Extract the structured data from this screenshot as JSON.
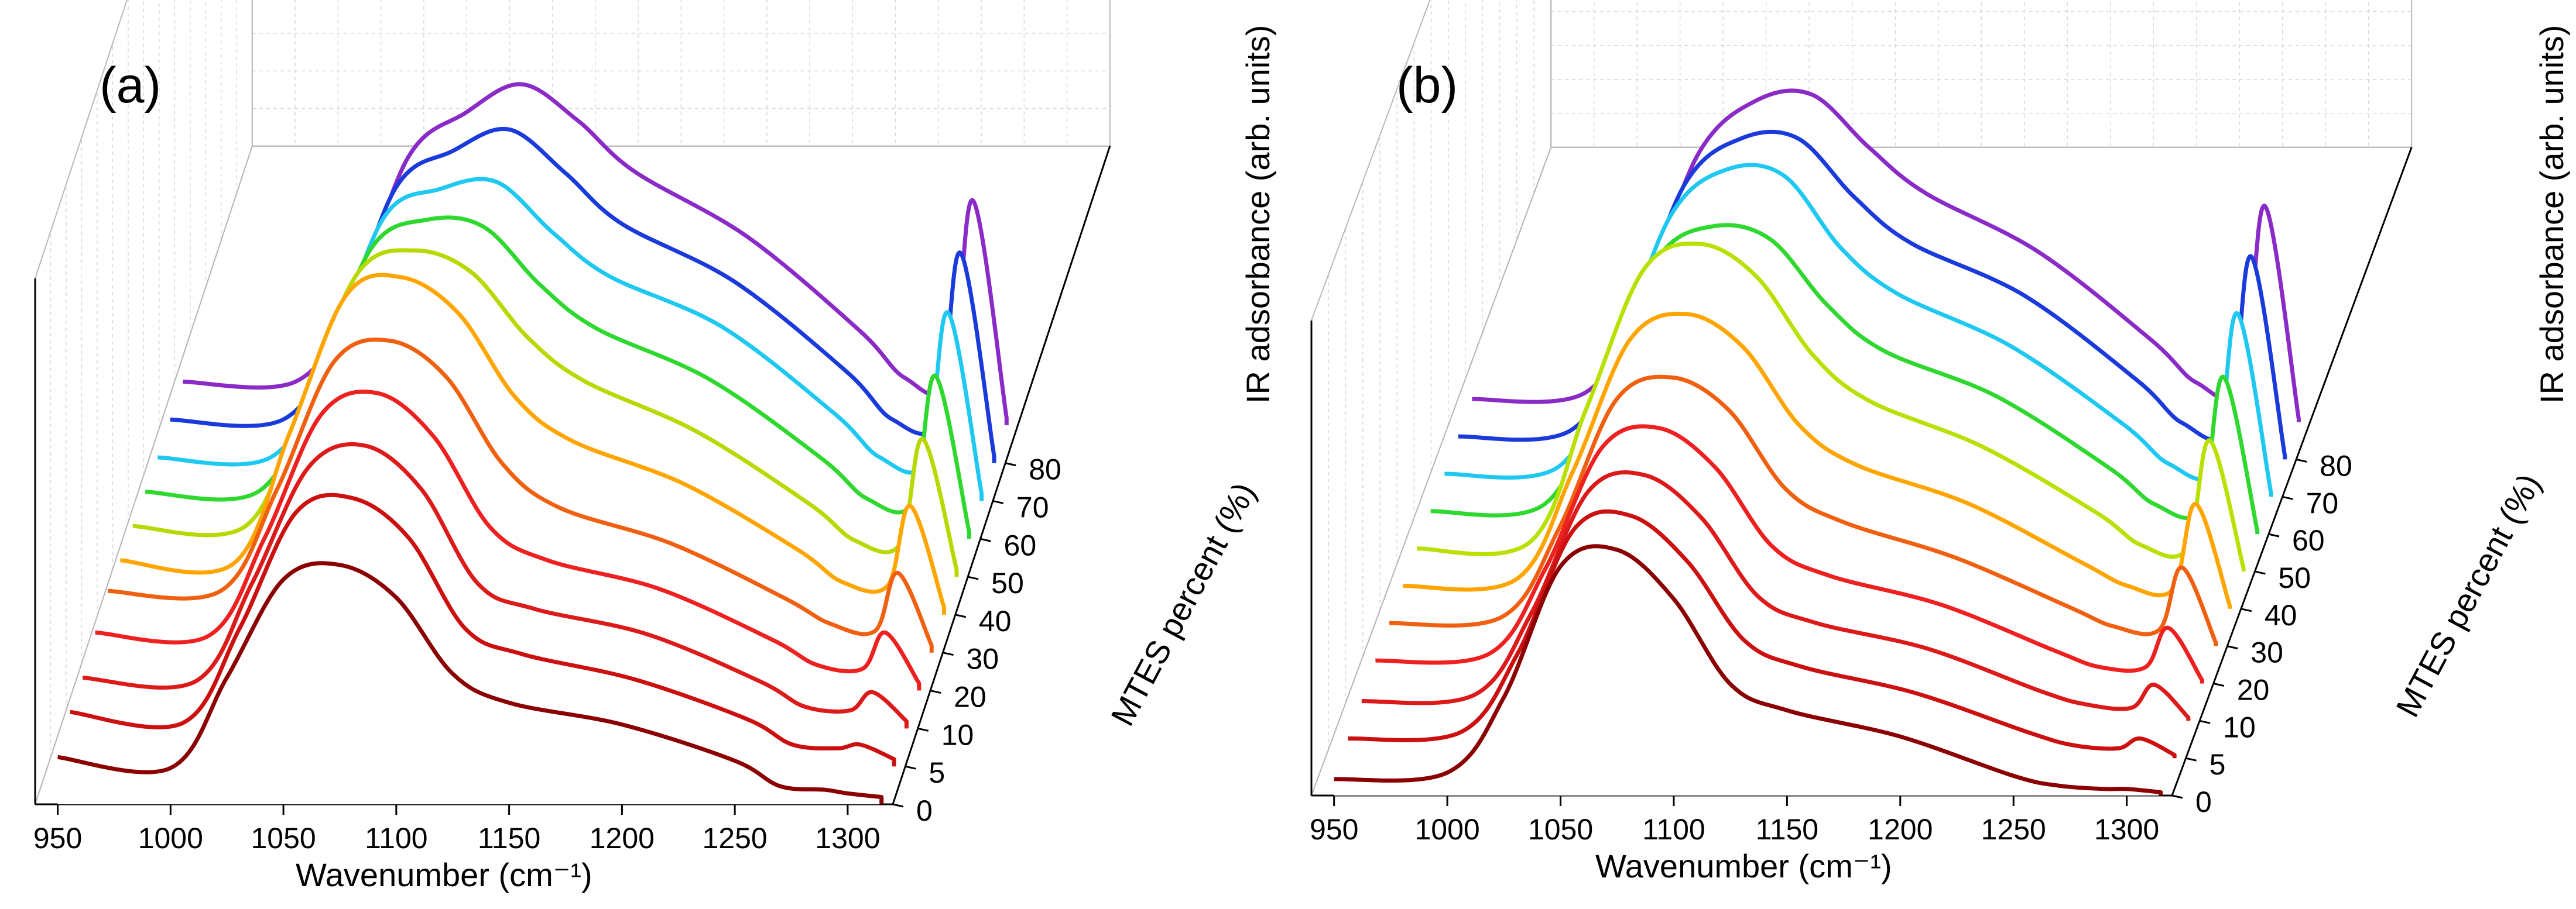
{
  "figure": {
    "panels": [
      "(a)",
      "(b)"
    ],
    "x_axis_label": "Wavenumber (cm⁻¹)",
    "y_axis_label": "MTES percent (%)",
    "z_axis_label": "IR adsorbance (arb. units)"
  },
  "chart_data": [
    {
      "type": "line",
      "panel": "(a)",
      "title": "",
      "xlabel": "Wavenumber (cm⁻¹)",
      "ylabel": "MTES percent (%)",
      "zlabel": "IR adsorbance (arb. units)",
      "xlim": [
        940,
        1320
      ],
      "x_ticks": [
        "950",
        "1000",
        "1050",
        "1100",
        "1150",
        "1200",
        "1250",
        "1300"
      ],
      "y_ticks": [
        "0",
        "5",
        "10",
        "20",
        "30",
        "40",
        "50",
        "60",
        "70",
        "80"
      ],
      "grid": true,
      "legend": "none",
      "series": [
        {
          "name": "0",
          "color": "#8B0000",
          "x": [
            950,
            1000,
            1025,
            1050,
            1075,
            1100,
            1125,
            1150,
            1200,
            1250,
            1270,
            1290,
            1300,
            1315
          ],
          "values": [
            0.13,
            0.1,
            0.35,
            0.62,
            0.66,
            0.57,
            0.36,
            0.28,
            0.22,
            0.12,
            0.05,
            0.04,
            0.03,
            0.02
          ]
        },
        {
          "name": "5",
          "color": "#CC1010",
          "x": [
            950,
            1000,
            1025,
            1050,
            1075,
            1100,
            1125,
            1150,
            1200,
            1250,
            1270,
            1290,
            1300,
            1315
          ],
          "values": [
            0.15,
            0.12,
            0.38,
            0.7,
            0.74,
            0.63,
            0.38,
            0.31,
            0.24,
            0.13,
            0.06,
            0.05,
            0.06,
            0.02
          ]
        },
        {
          "name": "10",
          "color": "#DD1A1A",
          "x": [
            950,
            1000,
            1025,
            1050,
            1075,
            1100,
            1125,
            1150,
            1200,
            1250,
            1270,
            1290,
            1300,
            1315
          ],
          "values": [
            0.14,
            0.13,
            0.4,
            0.72,
            0.78,
            0.66,
            0.4,
            0.33,
            0.26,
            0.13,
            0.06,
            0.05,
            0.1,
            0.02
          ]
        },
        {
          "name": "20",
          "color": "#EE2020",
          "x": [
            950,
            1000,
            1025,
            1050,
            1075,
            1100,
            1125,
            1150,
            1200,
            1250,
            1270,
            1290,
            1300,
            1315
          ],
          "values": [
            0.16,
            0.15,
            0.42,
            0.76,
            0.82,
            0.7,
            0.45,
            0.36,
            0.28,
            0.14,
            0.07,
            0.06,
            0.16,
            0.02
          ]
        },
        {
          "name": "30",
          "color": "#F06010",
          "x": [
            950,
            1000,
            1025,
            1050,
            1075,
            1100,
            1125,
            1150,
            1200,
            1250,
            1270,
            1290,
            1300,
            1315
          ],
          "values": [
            0.17,
            0.17,
            0.45,
            0.8,
            0.86,
            0.76,
            0.52,
            0.4,
            0.3,
            0.15,
            0.08,
            0.06,
            0.22,
            0.02
          ]
        },
        {
          "name": "40",
          "color": "#FFA500",
          "x": [
            950,
            1000,
            1025,
            1050,
            1075,
            1100,
            1125,
            1150,
            1200,
            1250,
            1270,
            1290,
            1300,
            1315
          ],
          "values": [
            0.15,
            0.14,
            0.5,
            0.88,
            0.93,
            0.83,
            0.6,
            0.48,
            0.36,
            0.18,
            0.09,
            0.08,
            0.3,
            0.02
          ]
        },
        {
          "name": "50",
          "color": "#B8D800",
          "x": [
            950,
            1000,
            1025,
            1050,
            1075,
            1100,
            1125,
            1150,
            1200,
            1250,
            1270,
            1290,
            1300,
            1315
          ],
          "values": [
            0.14,
            0.14,
            0.48,
            0.84,
            0.9,
            0.84,
            0.66,
            0.54,
            0.4,
            0.2,
            0.1,
            0.09,
            0.38,
            0.02
          ]
        },
        {
          "name": "60",
          "color": "#2FD82F",
          "x": [
            950,
            1000,
            1025,
            1050,
            1075,
            1100,
            1125,
            1150,
            1200,
            1250,
            1270,
            1290,
            1300,
            1315
          ],
          "values": [
            0.13,
            0.13,
            0.42,
            0.8,
            0.88,
            0.86,
            0.7,
            0.58,
            0.44,
            0.22,
            0.11,
            0.1,
            0.45,
            0.02
          ]
        },
        {
          "name": "70",
          "color": "#1EC8F0",
          "x": [
            950,
            1000,
            1025,
            1050,
            1075,
            1100,
            1125,
            1150,
            1200,
            1250,
            1270,
            1290,
            1300,
            1315
          ],
          "values": [
            0.12,
            0.12,
            0.38,
            0.78,
            0.86,
            0.88,
            0.74,
            0.62,
            0.48,
            0.24,
            0.12,
            0.11,
            0.52,
            0.02
          ]
        },
        {
          "name": "75",
          "color": "#1A3ADC",
          "x": [
            950,
            1000,
            1025,
            1050,
            1075,
            1100,
            1125,
            1150,
            1200,
            1250,
            1270,
            1290,
            1300,
            1315
          ],
          "values": [
            0.12,
            0.12,
            0.36,
            0.76,
            0.86,
            0.92,
            0.8,
            0.66,
            0.5,
            0.25,
            0.12,
            0.12,
            0.58,
            0.02
          ]
        },
        {
          "name": "80",
          "color": "#8A2BC8",
          "x": [
            950,
            1000,
            1025,
            1050,
            1075,
            1100,
            1125,
            1150,
            1200,
            1250,
            1270,
            1290,
            1300,
            1315
          ],
          "values": [
            0.12,
            0.12,
            0.34,
            0.74,
            0.86,
            0.94,
            0.84,
            0.7,
            0.52,
            0.26,
            0.13,
            0.12,
            0.62,
            0.02
          ]
        }
      ]
    },
    {
      "type": "line",
      "panel": "(b)",
      "title": "",
      "xlabel": "Wavenumber (cm⁻¹)",
      "ylabel": "MTES percent (%)",
      "zlabel": "IR adsorbance (arb. units)",
      "xlim": [
        940,
        1320
      ],
      "x_ticks": [
        "950",
        "1000",
        "1050",
        "1100",
        "1150",
        "1200",
        "1250",
        "1300"
      ],
      "y_ticks": [
        "0",
        "5",
        "10",
        "20",
        "30",
        "40",
        "50",
        "60",
        "70",
        "80"
      ],
      "grid": true,
      "legend": "none",
      "series": [
        {
          "name": "0",
          "color": "#8B0000",
          "x": [
            950,
            1000,
            1025,
            1050,
            1075,
            1100,
            1125,
            1150,
            1200,
            1250,
            1270,
            1290,
            1300,
            1315
          ],
          "values": [
            0.05,
            0.07,
            0.3,
            0.7,
            0.75,
            0.6,
            0.34,
            0.26,
            0.18,
            0.06,
            0.03,
            0.02,
            0.02,
            0.01
          ]
        },
        {
          "name": "5",
          "color": "#CC1010",
          "x": [
            950,
            1000,
            1025,
            1050,
            1075,
            1100,
            1125,
            1150,
            1200,
            1250,
            1270,
            1290,
            1300,
            1315
          ],
          "values": [
            0.06,
            0.08,
            0.32,
            0.7,
            0.74,
            0.6,
            0.36,
            0.28,
            0.2,
            0.08,
            0.04,
            0.03,
            0.06,
            0.01
          ]
        },
        {
          "name": "10",
          "color": "#DD1A1A",
          "x": [
            950,
            1000,
            1025,
            1050,
            1075,
            1100,
            1125,
            1150,
            1200,
            1250,
            1270,
            1290,
            1300,
            1315
          ],
          "values": [
            0.06,
            0.08,
            0.33,
            0.7,
            0.75,
            0.62,
            0.38,
            0.3,
            0.22,
            0.09,
            0.05,
            0.04,
            0.11,
            0.01
          ]
        },
        {
          "name": "20",
          "color": "#EE2020",
          "x": [
            950,
            1000,
            1025,
            1050,
            1075,
            1100,
            1125,
            1150,
            1200,
            1250,
            1270,
            1290,
            1300,
            1315
          ],
          "values": [
            0.07,
            0.09,
            0.35,
            0.72,
            0.78,
            0.66,
            0.42,
            0.33,
            0.24,
            0.1,
            0.05,
            0.05,
            0.17,
            0.01
          ]
        },
        {
          "name": "30",
          "color": "#F06010",
          "x": [
            950,
            1000,
            1025,
            1050,
            1075,
            1100,
            1125,
            1150,
            1200,
            1250,
            1270,
            1290,
            1300,
            1315
          ],
          "values": [
            0.07,
            0.09,
            0.36,
            0.75,
            0.82,
            0.72,
            0.48,
            0.38,
            0.27,
            0.12,
            0.06,
            0.05,
            0.24,
            0.01
          ]
        },
        {
          "name": "40",
          "color": "#FFA500",
          "x": [
            950,
            1000,
            1025,
            1050,
            1075,
            1100,
            1125,
            1150,
            1200,
            1250,
            1270,
            1290,
            1300,
            1315
          ],
          "values": [
            0.07,
            0.09,
            0.42,
            0.82,
            0.9,
            0.8,
            0.56,
            0.44,
            0.32,
            0.14,
            0.07,
            0.06,
            0.32,
            0.01
          ]
        },
        {
          "name": "50",
          "color": "#B8E000",
          "x": [
            950,
            1000,
            1025,
            1050,
            1075,
            1100,
            1125,
            1150,
            1200,
            1250,
            1270,
            1290,
            1300,
            1315
          ],
          "values": [
            0.07,
            0.09,
            0.5,
            0.92,
            1.0,
            0.9,
            0.66,
            0.52,
            0.38,
            0.18,
            0.08,
            0.07,
            0.4,
            0.01
          ]
        },
        {
          "name": "60",
          "color": "#2FD82F",
          "x": [
            950,
            1000,
            1025,
            1050,
            1075,
            1100,
            1125,
            1150,
            1200,
            1250,
            1270,
            1290,
            1300,
            1315
          ],
          "values": [
            0.07,
            0.09,
            0.44,
            0.84,
            0.94,
            0.9,
            0.7,
            0.56,
            0.42,
            0.2,
            0.09,
            0.08,
            0.48,
            0.01
          ]
        },
        {
          "name": "70",
          "color": "#1EC8F0",
          "x": [
            950,
            1000,
            1025,
            1050,
            1075,
            1100,
            1125,
            1150,
            1200,
            1250,
            1270,
            1290,
            1300,
            1315
          ],
          "values": [
            0.07,
            0.09,
            0.42,
            0.86,
            1.0,
            0.98,
            0.76,
            0.62,
            0.46,
            0.22,
            0.1,
            0.09,
            0.56,
            0.01
          ]
        },
        {
          "name": "75",
          "color": "#1A3ADC",
          "x": [
            950,
            1000,
            1025,
            1050,
            1075,
            1100,
            1125,
            1150,
            1200,
            1250,
            1270,
            1290,
            1300,
            1315
          ],
          "values": [
            0.07,
            0.09,
            0.4,
            0.84,
            0.98,
            0.98,
            0.8,
            0.66,
            0.5,
            0.24,
            0.11,
            0.1,
            0.62,
            0.01
          ]
        },
        {
          "name": "80",
          "color": "#8A2BC8",
          "x": [
            950,
            1000,
            1025,
            1050,
            1075,
            1100,
            1125,
            1150,
            1200,
            1250,
            1270,
            1290,
            1300,
            1315
          ],
          "values": [
            0.07,
            0.09,
            0.38,
            0.82,
            0.98,
            1.0,
            0.84,
            0.7,
            0.52,
            0.25,
            0.12,
            0.11,
            0.66,
            0.01
          ]
        }
      ]
    }
  ]
}
